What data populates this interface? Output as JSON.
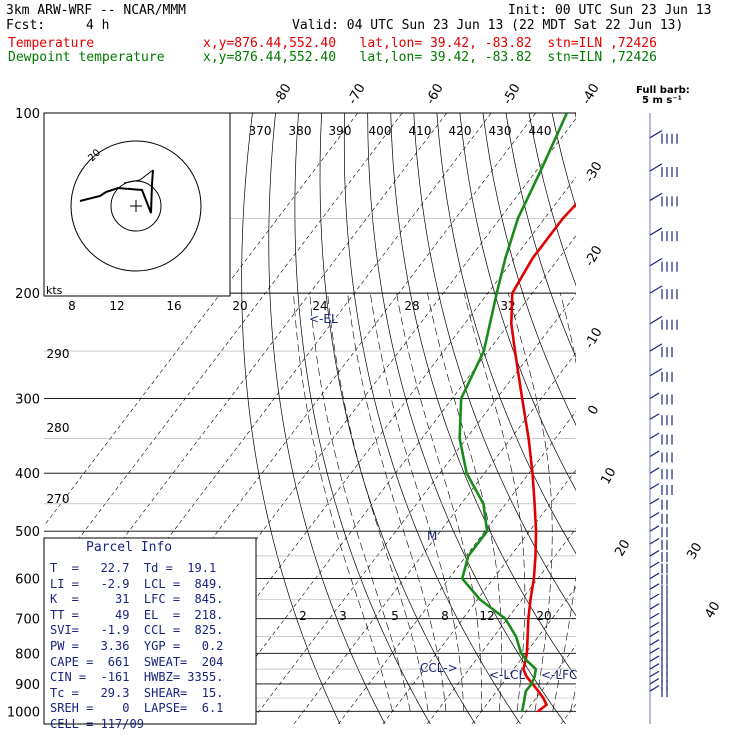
{
  "header": {
    "model": "3km ARW-WRF -- NCAR/MMM",
    "init": "Init: 00 UTC Sun 23 Jun 13",
    "fcst_label": "Fcst:",
    "fcst_value": "4 h",
    "valid": "Valid: 04 UTC Sun 23 Jun 13 (22 MDT Sat 22 Jun 13)",
    "temp_label": "Temperature",
    "temp_info": "x,y=876.44,552.40   lat,lon= 39.42, -83.82  stn=ILN ,72426",
    "dew_label": "Dewpoint temperature",
    "dew_info": "x,y=876.44,552.40   lat,lon= 39.42, -83.82  stn=ILN ,72426"
  },
  "full_barb_label": "Full barb:",
  "full_barb_value": "5 m s⁻¹",
  "parcel": {
    "title": "Parcel Info",
    "rows": [
      "T  =   22.7  Td =  19.1",
      "LI =   -2.9  LCL =  849.",
      "K  =     31  LFC =  845.",
      "TT =     49  EL  =  218.",
      "SVI=   -1.9  CCL =  825.",
      "PW =   3.36  YGP =   0.2",
      "CAPE =  661  SWEAT=  204",
      "CIN =  -161  HWBZ= 3355.",
      "Tc =   29.3  SHEAR=  15.",
      "SREH =    0  LAPSE=  6.1",
      "CELL = 117/09"
    ]
  },
  "annotations": {
    "el": "<-EL",
    "lcl": "<-LCL",
    "lfc": "<-LFC",
    "ccl": "CCL->",
    "m_marker": "M"
  },
  "hodograph": {
    "kts_label": "kts",
    "ring_label": "20"
  },
  "colors": {
    "temperature": "#e00000",
    "dewpoint": "#1a8a1a",
    "wind": "#1a237e",
    "annotation": "#1a237e"
  },
  "chart_data": {
    "type": "line",
    "title": "",
    "y_scale": "log",
    "yaxis_labels": [
      "100",
      "200",
      "300",
      "400",
      "500",
      "600",
      "700",
      "800",
      "900",
      "1000"
    ],
    "isotherm_labels": [
      "-80",
      "-70",
      "-60",
      "-50",
      "-40",
      "-30",
      "-20",
      "-10",
      "0",
      "10",
      "20",
      "30",
      "40"
    ],
    "theta_labels": [
      "370",
      "380",
      "390",
      "400",
      "410",
      "420",
      "430",
      "440"
    ],
    "theta_left_labels": [
      "290",
      "280",
      "270"
    ],
    "mixing_ratio_labels_top": [
      "8",
      "12",
      "16",
      "20",
      "24",
      "28",
      "32"
    ],
    "mixing_ratio_labels_low": [
      "2",
      "3",
      "5",
      "8",
      "12",
      "20"
    ],
    "series": [
      {
        "name": "Temperature",
        "pressure": [
          1000,
          975,
          950,
          925,
          900,
          875,
          850,
          825,
          800,
          750,
          700,
          650,
          600,
          550,
          500,
          450,
          400,
          350,
          300,
          250,
          225,
          200,
          175,
          150,
          125,
          100
        ],
        "temp": [
          22.7,
          23.5,
          21.6,
          19.3,
          16.8,
          14.2,
          12.2,
          11.3,
          10.3,
          7.6,
          4.7,
          1.9,
          -0.9,
          -4.4,
          -8.5,
          -13.5,
          -19.2,
          -26.0,
          -34.3,
          -44.0,
          -49.5,
          -54.5,
          -55.9,
          -55.9,
          -54.0,
          -54.5
        ]
      },
      {
        "name": "Dewpoint temperature",
        "pressure": [
          1000,
          975,
          950,
          925,
          900,
          875,
          850,
          825,
          800,
          750,
          700,
          650,
          600,
          550,
          500,
          450,
          400,
          350,
          300,
          250,
          200,
          175,
          150,
          125,
          100
        ],
        "temp": [
          19.1,
          18.3,
          17.4,
          16.5,
          16.6,
          16.0,
          15.0,
          11.8,
          9.0,
          5.0,
          -0.5,
          -9.5,
          -17.0,
          -19.5,
          -19.5,
          -25.0,
          -34.0,
          -41.5,
          -48.0,
          -51.0,
          -58.0,
          -62.0,
          -66.0,
          -69.0,
          -73.0
        ]
      }
    ]
  }
}
